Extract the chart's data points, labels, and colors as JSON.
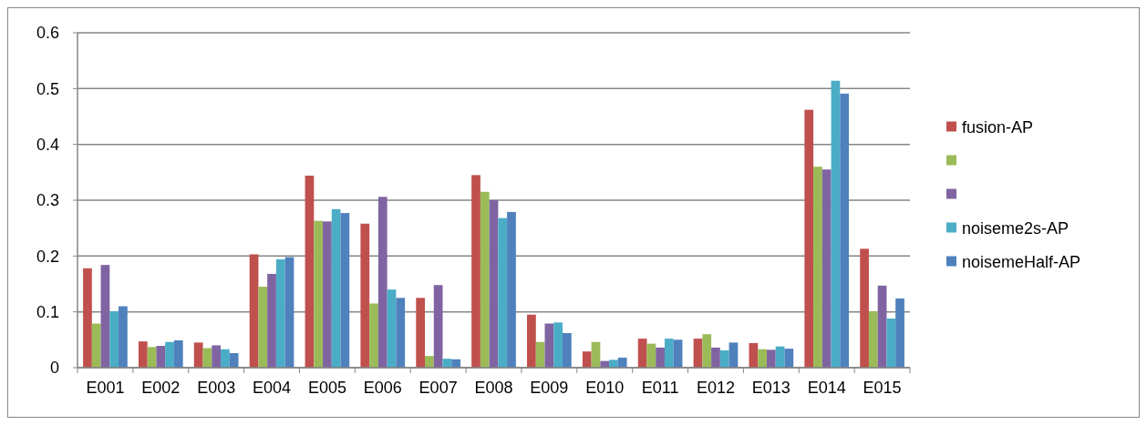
{
  "chart_data": {
    "type": "bar",
    "categories": [
      "E001",
      "E002",
      "E003",
      "E004",
      "E005",
      "E006",
      "E007",
      "E008",
      "E009",
      "E010",
      "E011",
      "E012",
      "E013",
      "E014",
      "E015"
    ],
    "series": [
      {
        "name": "fusion-AP",
        "color": "#c0504d",
        "values": [
          0.178,
          0.047,
          0.045,
          0.203,
          0.344,
          0.258,
          0.125,
          0.345,
          0.095,
          0.029,
          0.052,
          0.052,
          0.044,
          0.462,
          0.213
        ]
      },
      {
        "color": "#9bbb59",
        "values": [
          0.079,
          0.037,
          0.035,
          0.145,
          0.263,
          0.115,
          0.021,
          0.315,
          0.046,
          0.046,
          0.043,
          0.06,
          0.033,
          0.36,
          0.101
        ]
      },
      {
        "color": "#8064a2",
        "values": [
          0.184,
          0.039,
          0.04,
          0.168,
          0.262,
          0.306,
          0.148,
          0.3,
          0.079,
          0.012,
          0.036,
          0.036,
          0.032,
          0.355,
          0.147
        ]
      },
      {
        "name": "noiseme2s-AP",
        "color": "#4bacc6",
        "values": [
          0.101,
          0.046,
          0.033,
          0.194,
          0.284,
          0.14,
          0.016,
          0.268,
          0.081,
          0.014,
          0.052,
          0.031,
          0.038,
          0.514,
          0.088
        ]
      },
      {
        "name": "noisemeHalf-AP",
        "color": "#4f81bd",
        "values": [
          0.11,
          0.049,
          0.026,
          0.198,
          0.277,
          0.125,
          0.015,
          0.279,
          0.062,
          0.018,
          0.05,
          0.045,
          0.034,
          0.491,
          0.124
        ]
      }
    ],
    "ylim": [
      0,
      0.6
    ],
    "yticks": [
      0,
      0.1,
      0.2,
      0.3,
      0.4,
      0.5,
      0.6
    ],
    "grid": "y",
    "legend": "right"
  }
}
